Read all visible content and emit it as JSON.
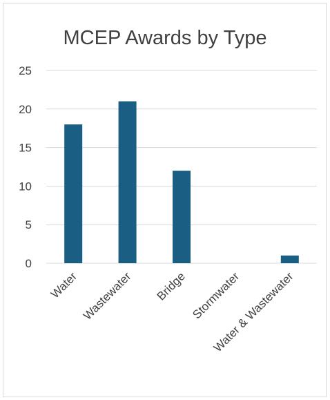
{
  "chart_data": {
    "type": "bar",
    "title": "MCEP Awards by Type",
    "categories": [
      "Water",
      "Wastewater",
      "Bridge",
      "Stormwater",
      "Water & Wastewater"
    ],
    "values": [
      18,
      21,
      12,
      0,
      1
    ],
    "ylim": [
      0,
      25
    ],
    "yticks": [
      0,
      5,
      10,
      15,
      20,
      25
    ],
    "grid": true,
    "legend": "none",
    "colors": {
      "bar": "#1a5e84",
      "grid": "#d9d9d9",
      "text": "#404040"
    }
  }
}
